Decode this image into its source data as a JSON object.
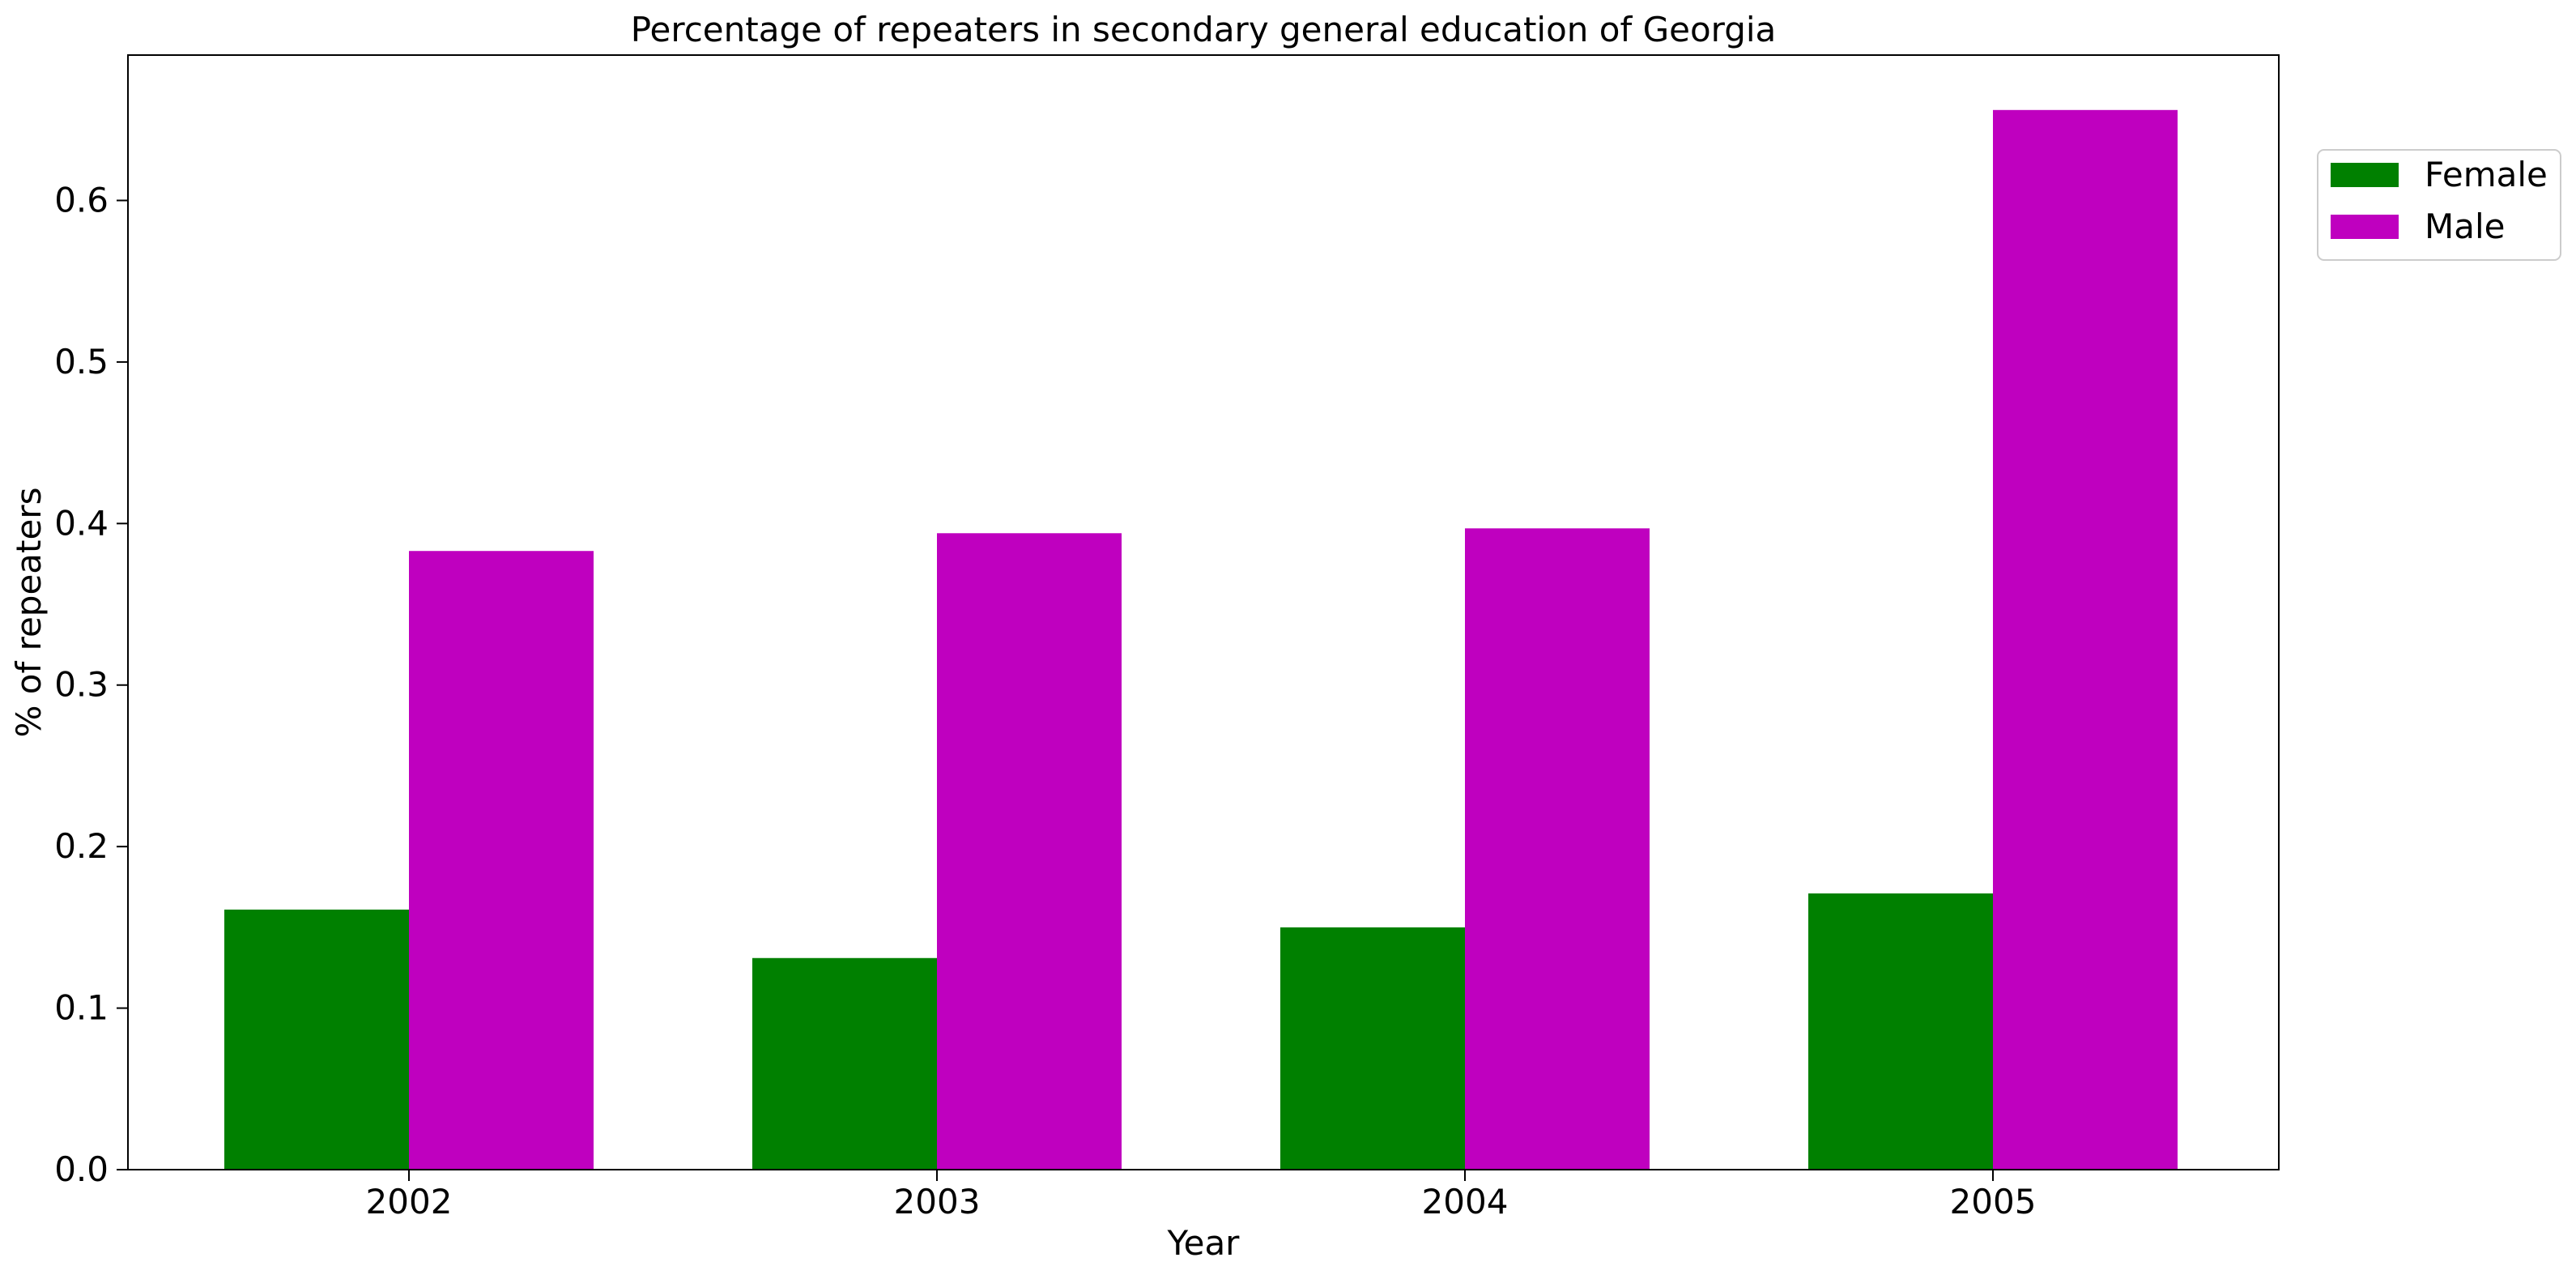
{
  "chart_data": {
    "type": "bar",
    "title": "Percentage of repeaters in secondary general education of Georgia",
    "xlabel": "Year",
    "ylabel": "% of repeaters",
    "categories": [
      "2002",
      "2003",
      "2004",
      "2005"
    ],
    "series": [
      {
        "name": "Female",
        "color": "#008000",
        "values": [
          0.161,
          0.131,
          0.15,
          0.171
        ]
      },
      {
        "name": "Male",
        "color": "#bf00bf",
        "values": [
          0.383,
          0.394,
          0.397,
          0.656
        ]
      }
    ],
    "ylim": [
      0,
      0.69
    ],
    "yticks": [
      "0.0",
      "0.1",
      "0.2",
      "0.3",
      "0.4",
      "0.5",
      "0.6"
    ],
    "grid": false,
    "legend": {
      "placement": "outside-top-right"
    }
  }
}
